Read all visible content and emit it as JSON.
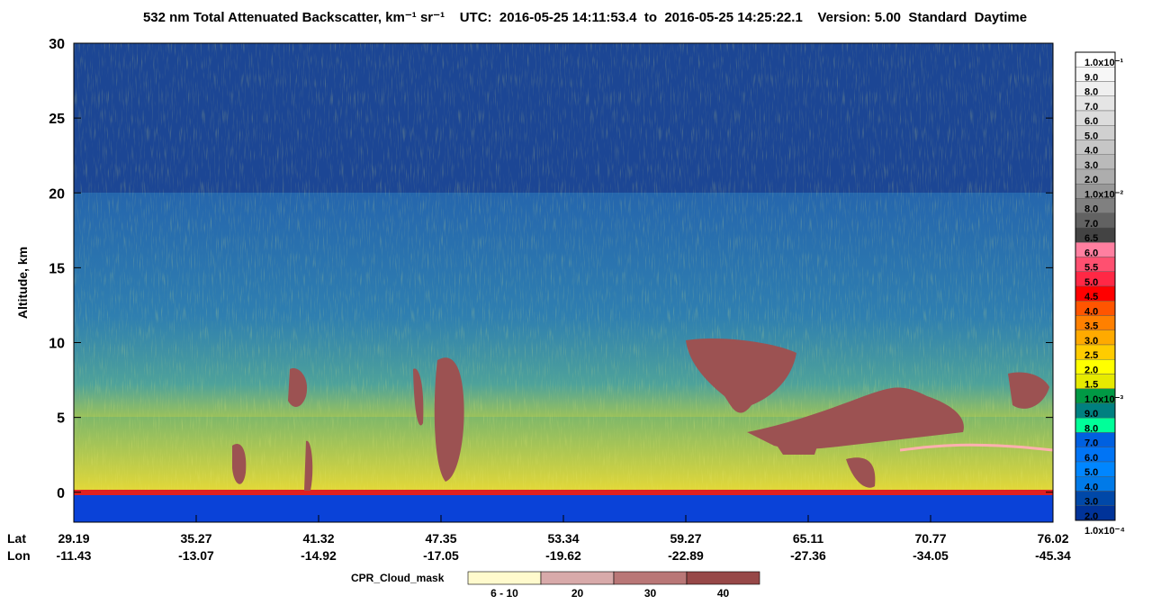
{
  "chart_data": {
    "type": "heatmap",
    "title": "532 nm Total Attenuated Backscatter, km⁻¹ sr⁻¹    UTC:  2016-05-25 14:11:53.4  to  2016-05-25 14:25:22.1    Version: 5.00  Standard  Daytime",
    "y_label": "Altitude, km",
    "ylim": [
      -2,
      30
    ],
    "yticks": [
      0,
      5,
      10,
      15,
      20,
      25,
      30
    ],
    "x_lat_label": "Lat",
    "x_lon_label": "Lon",
    "lat": [
      29.19,
      35.27,
      41.32,
      47.35,
      53.34,
      59.27,
      65.11,
      70.77,
      76.02
    ],
    "lon": [
      -11.43,
      -13.07,
      -14.92,
      -17.05,
      -19.62,
      -22.89,
      -27.36,
      -34.05,
      -45.34
    ],
    "colorbar": {
      "labels": [
        "1.0x10⁻¹",
        "9.0",
        "8.0",
        "7.0",
        "6.0",
        "5.0",
        "4.0",
        "3.0",
        "2.0",
        "1.0x10⁻²",
        "8.0",
        "7.0",
        "6.5",
        "6.0",
        "5.5",
        "5.0",
        "4.5",
        "4.0",
        "3.5",
        "3.0",
        "2.5",
        "2.0",
        "1.5",
        "1.0x10⁻³",
        "9.0",
        "8.0",
        "7.0",
        "6.0",
        "5.0",
        "4.0",
        "3.0",
        "2.0",
        "1.0x10⁻⁴"
      ],
      "colors": [
        "#ffffff",
        "#f7f7f7",
        "#efefef",
        "#e5e5e5",
        "#dcdcdc",
        "#d0d0d0",
        "#c6c6c6",
        "#bababa",
        "#adadad",
        "#989898",
        "#808080",
        "#626262",
        "#434343",
        "#ff7fa0",
        "#ff5070",
        "#ff2845",
        "#ff0000",
        "#ff5500",
        "#ff8000",
        "#ffaa00",
        "#ffcc00",
        "#ffff00",
        "#e6ea00",
        "#009944",
        "#008080",
        "#00ff99",
        "#0060e0",
        "#0074f5",
        "#0086ff",
        "#007ae8",
        "#0048a8",
        "#003399"
      ]
    },
    "cloud_mask": {
      "title": "CPR_Cloud_mask",
      "labels": [
        "6 - 10",
        "20",
        "30",
        "40"
      ],
      "colors": [
        "#fffacd",
        "#d8aaaa",
        "#b97777",
        "#974848"
      ]
    }
  }
}
